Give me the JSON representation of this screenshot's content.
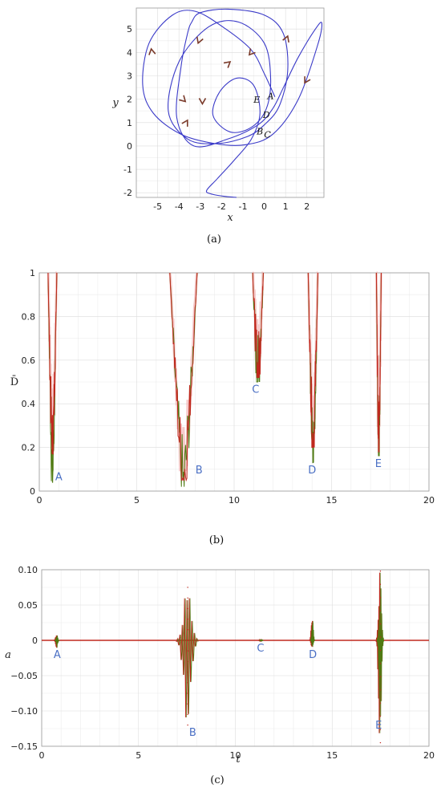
{
  "chart_data": [
    {
      "id": "a",
      "type": "line",
      "panel_label": "(a)",
      "xlabel": "x",
      "ylabel": "y",
      "xlim": [
        -6,
        2.8
      ],
      "ylim": [
        -2.2,
        5.9
      ],
      "x_ticks": [
        -5,
        -4,
        -3,
        -2,
        -1,
        0,
        1,
        2
      ],
      "y_ticks": [
        -2,
        -1,
        0,
        1,
        2,
        3,
        4,
        5
      ],
      "grid": true,
      "colors": {
        "trajectory": "#3a3ac8",
        "arrow": "#7a3a2a"
      },
      "series": [
        {
          "x": [
            0.5,
            0.0,
            -0.6,
            -1.8,
            -3.2,
            -4.3,
            -5.4,
            -5.7,
            -5.2,
            -3.9,
            -2.3,
            -0.9,
            0.4,
            1.6,
            2.5,
            2.7,
            2.4,
            1.6,
            0.9,
            0.4,
            -0.3,
            -1.7,
            -3.3,
            -4.1,
            -3.9,
            -3.6,
            -3.4,
            -3.0,
            -1.7,
            0.0,
            0.9,
            1.1,
            0.7,
            0.0,
            -0.8,
            -2.2,
            -3.6,
            -4.5,
            -4.0,
            -2.6,
            -1.2,
            0.0,
            0.3,
            0.1,
            -0.6,
            -1.6,
            -2.4,
            -2.1,
            -1.3,
            -0.5,
            -0.2,
            -0.6,
            -1.4,
            -2.2,
            -2.7,
            -2.5,
            -1.9,
            -1.3
          ],
          "y": [
            2.1,
            3.1,
            4.1,
            5.0,
            5.75,
            5.6,
            4.4,
            2.6,
            1.4,
            0.5,
            0.1,
            0.05,
            0.5,
            2.0,
            4.3,
            5.25,
            5.0,
            3.8,
            2.5,
            1.6,
            0.9,
            0.3,
            0.0,
            1.2,
            3.4,
            4.8,
            5.3,
            5.7,
            5.85,
            5.6,
            4.8,
            3.2,
            1.7,
            0.9,
            0.4,
            0.1,
            0.3,
            1.5,
            3.6,
            5.1,
            5.3,
            4.4,
            2.9,
            1.6,
            0.8,
            0.6,
            1.3,
            2.3,
            2.9,
            2.6,
            1.4,
            0.3,
            -0.6,
            -1.4,
            -1.9,
            -2.05,
            -2.15,
            -2.2
          ]
        }
      ],
      "arrows": [
        {
          "x": -5.3,
          "y": 4.15,
          "angle": 100
        },
        {
          "x": -3.1,
          "y": 4.4,
          "angle": 250
        },
        {
          "x": -1.6,
          "y": 3.6,
          "angle": 40
        },
        {
          "x": -0.7,
          "y": 3.9,
          "angle": 230
        },
        {
          "x": 1.1,
          "y": 4.7,
          "angle": 70
        },
        {
          "x": 1.9,
          "y": 2.7,
          "angle": 240
        },
        {
          "x": -3.7,
          "y": 1.9,
          "angle": 315
        },
        {
          "x": -2.9,
          "y": 1.8,
          "angle": 270
        },
        {
          "x": -3.6,
          "y": 1.1,
          "angle": 60
        }
      ],
      "annotations": [
        {
          "text": "A",
          "x": 0.3,
          "y": 2.0
        },
        {
          "text": "E",
          "x": -0.35,
          "y": 1.85
        },
        {
          "text": "D",
          "x": 0.1,
          "y": 1.2
        },
        {
          "text": "B",
          "x": -0.2,
          "y": 0.5
        },
        {
          "text": "C",
          "x": 0.15,
          "y": 0.35
        }
      ]
    },
    {
      "id": "b",
      "type": "line",
      "panel_label": "(b)",
      "xlabel": "",
      "ylabel": "D̄",
      "xlim": [
        0,
        20
      ],
      "ylim": [
        0,
        1
      ],
      "x_ticks": [
        0,
        5,
        10,
        15,
        20
      ],
      "y_ticks": [
        0,
        0.2,
        0.4,
        0.6,
        0.8,
        1
      ],
      "grid": true,
      "colors": {
        "red": "#c0281e",
        "green": "#4f7a12",
        "pink": "#f0a8a8"
      },
      "dips": [
        {
          "label": "A",
          "x_min": 0.45,
          "x_max": 0.9,
          "min_red": 0.17,
          "min_green": 0.04
        },
        {
          "label": "B",
          "x_min": 6.7,
          "x_max": 8.1,
          "min_red": 0.05,
          "min_green": 0.02
        },
        {
          "label": "C",
          "x_min": 10.95,
          "x_max": 11.5,
          "min_red": 0.52,
          "min_green": 0.5
        },
        {
          "label": "D",
          "x_min": 13.8,
          "x_max": 14.3,
          "min_red": 0.2,
          "min_green": 0.13
        },
        {
          "label": "E",
          "x_min": 17.3,
          "x_max": 17.55,
          "min_red": 0.18,
          "min_green": 0.16
        }
      ],
      "annotations": [
        {
          "text": "A",
          "x": 1.0,
          "y": 0.05
        },
        {
          "text": "B",
          "x": 8.2,
          "y": 0.08
        },
        {
          "text": "C",
          "x": 11.1,
          "y": 0.45
        },
        {
          "text": "D",
          "x": 14.0,
          "y": 0.08
        },
        {
          "text": "E",
          "x": 17.4,
          "y": 0.11
        }
      ]
    },
    {
      "id": "c",
      "type": "line",
      "panel_label": "(c)",
      "xlabel": "t",
      "ylabel": "a",
      "xlim": [
        0,
        20
      ],
      "ylim": [
        -0.15,
        0.1
      ],
      "x_ticks": [
        0,
        5,
        10,
        15,
        20
      ],
      "y_ticks": [
        -0.15,
        -0.1,
        -0.05,
        0,
        0.05,
        0.1
      ],
      "y_tick_labels": [
        "−0.15",
        "−0.10",
        "−0.05",
        "0",
        "0.05",
        "0.10"
      ],
      "grid": true,
      "colors": {
        "red": "#c0281e",
        "green": "#4f7a12"
      },
      "events": [
        {
          "label": "A",
          "t": 0.75,
          "max": 0.009,
          "min": -0.012
        },
        {
          "label": "B",
          "t": 7.5,
          "max": 0.075,
          "min": -0.12
        },
        {
          "label": "C",
          "t": 11.3,
          "max": 0.002,
          "min": -0.002
        },
        {
          "label": "D",
          "t": 13.95,
          "max": 0.035,
          "min": -0.012
        },
        {
          "label": "E",
          "t": 17.45,
          "max": 0.098,
          "min": -0.145
        }
      ],
      "annotations": [
        {
          "text": "A",
          "x": 0.8,
          "y": -0.025
        },
        {
          "text": "B",
          "x": 7.8,
          "y": -0.135
        },
        {
          "text": "C",
          "x": 11.3,
          "y": -0.016
        },
        {
          "text": "D",
          "x": 14.0,
          "y": -0.025
        },
        {
          "text": "E",
          "x": 17.4,
          "y": -0.125
        }
      ]
    }
  ]
}
